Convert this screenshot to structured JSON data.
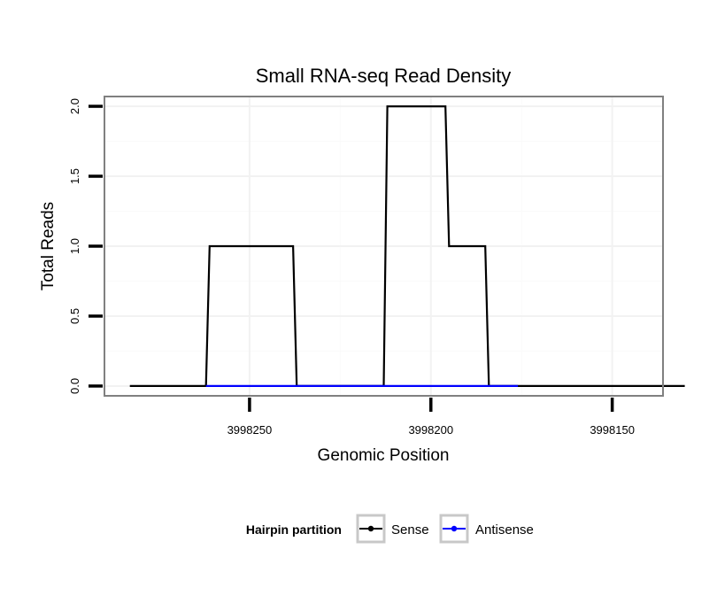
{
  "chart_data": {
    "type": "line",
    "title": "Small RNA-seq Read Density",
    "xlabel": "Genomic Position",
    "ylabel": "Total Reads",
    "x_reversed": true,
    "xlim": [
      3998290,
      3998136
    ],
    "ylim": [
      -0.07,
      2.07
    ],
    "x_ticks": [
      3998250,
      3998200,
      3998150
    ],
    "x_tick_labels": [
      "3998250",
      "3998200",
      "3998150"
    ],
    "y_ticks": [
      0.0,
      0.5,
      1.0,
      1.5,
      2.0
    ],
    "y_tick_labels": [
      "0.0",
      "0.5",
      "1.0",
      "1.5",
      "2.0"
    ],
    "minor_x_ticks": [
      3998225,
      3998175
    ],
    "minor_y_ticks": [
      0.25,
      0.75,
      1.25,
      1.75
    ],
    "grid": true,
    "legend_title": "Hairpin partition",
    "legend_position": "bottom",
    "series": [
      {
        "name": "Sense",
        "color": "#000000",
        "x": [
          3998283,
          3998262,
          3998261,
          3998238,
          3998237,
          3998213,
          3998212,
          3998196,
          3998195,
          3998185,
          3998184,
          3998177,
          3998176,
          3998130
        ],
        "y": [
          0,
          0,
          1,
          1,
          0,
          0,
          2,
          2,
          1,
          1,
          0,
          0,
          0,
          0
        ]
      },
      {
        "name": "Antisense",
        "color": "#0000ff",
        "x": [
          3998262,
          3998237,
          3998213,
          3998176
        ],
        "y": [
          0,
          0,
          0,
          0
        ]
      }
    ]
  }
}
